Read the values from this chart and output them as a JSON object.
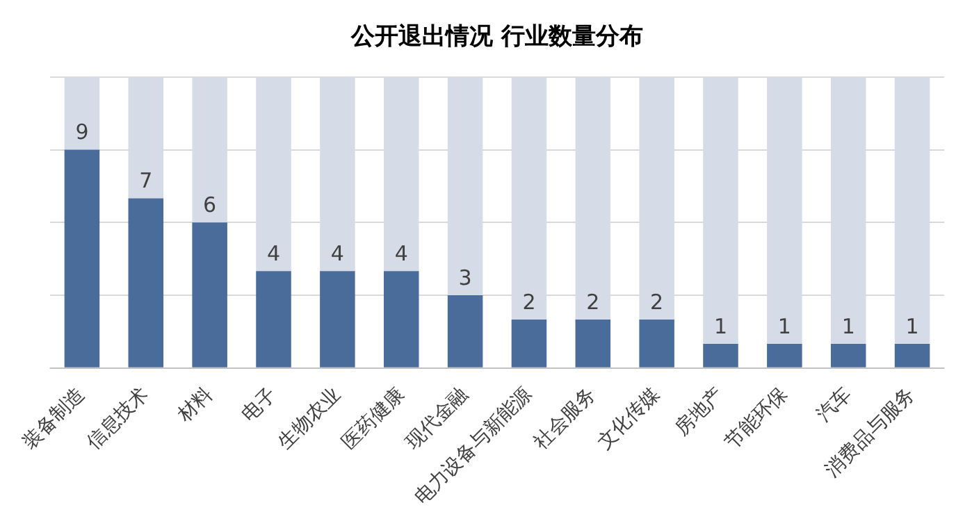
{
  "chart_data": {
    "type": "bar",
    "title": "公开退出情况 行业数量分布",
    "categories": [
      "装备制造",
      "信息技术",
      "材料",
      "电子",
      "生物农业",
      "医药健康",
      "现代金融",
      "电力设备与新能源",
      "社会服务",
      "文化传媒",
      "房地产",
      "节能环保",
      "汽车",
      "消费品与服务"
    ],
    "series": [
      {
        "color": "#4a6c9b",
        "values": [
          9,
          7,
          6,
          4,
          4,
          4,
          3,
          2,
          2,
          2,
          1,
          1,
          1,
          1
        ],
        "value_labels": [
          "9",
          "7",
          "6",
          "4",
          "4",
          "4",
          "3",
          "2",
          "2",
          "2",
          "1",
          "1",
          "1",
          "1"
        ]
      },
      {
        "color": "#d5dce7",
        "values": [
          3,
          5,
          6,
          8,
          8,
          8,
          9,
          10,
          10,
          10,
          11,
          11,
          11,
          11
        ]
      }
    ],
    "stacked": true,
    "ylim": [
      0,
      12
    ],
    "yticks": [
      0,
      3,
      6,
      9,
      12
    ],
    "grid": "y",
    "tick_labels": "x",
    "legend": false
  }
}
